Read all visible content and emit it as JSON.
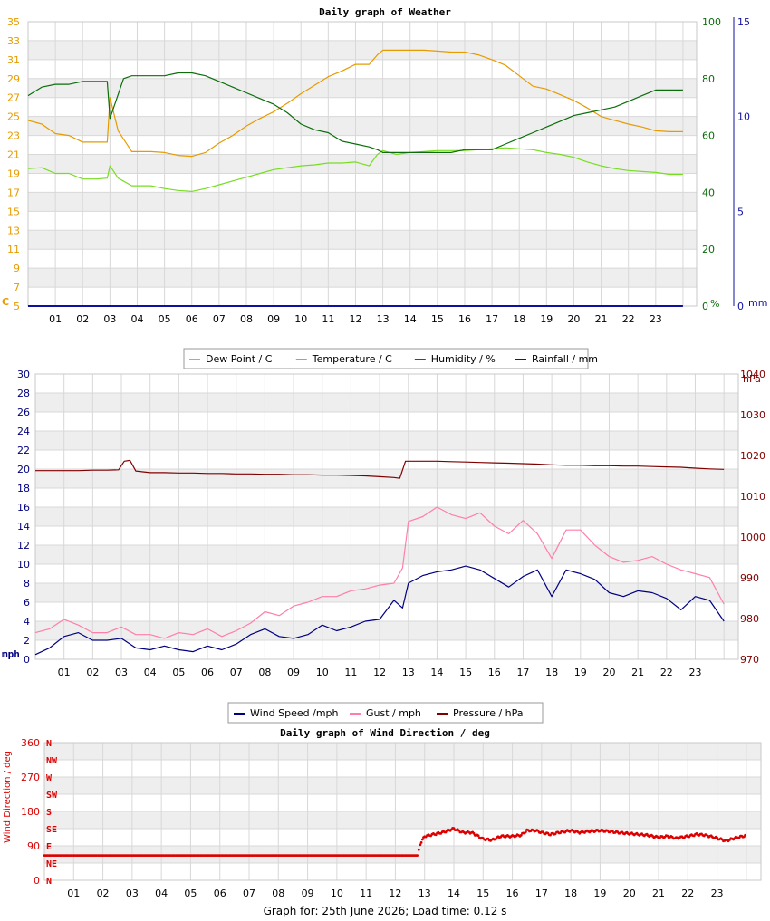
{
  "footer": "Graph for: 25th June 2026; Load time: 0.12 s",
  "hours": [
    "01",
    "02",
    "03",
    "04",
    "05",
    "06",
    "07",
    "08",
    "09",
    "10",
    "11",
    "12",
    "13",
    "14",
    "15",
    "16",
    "17",
    "18",
    "19",
    "20",
    "21",
    "22",
    "23"
  ],
  "chart_data": [
    {
      "type": "line",
      "title": "Daily graph of Weather",
      "x_range": [
        0,
        24.5
      ],
      "grid": true,
      "legend_position": "bottom",
      "axes": {
        "left": {
          "unit": "C",
          "range": [
            5,
            35
          ],
          "ticks": [
            5,
            7,
            9,
            11,
            13,
            15,
            17,
            19,
            21,
            23,
            25,
            27,
            29,
            31,
            33,
            35
          ],
          "color": "#e69b00"
        },
        "right1": {
          "unit": "%",
          "range": [
            0,
            100
          ],
          "ticks": [
            0,
            20,
            40,
            60,
            80,
            100
          ],
          "color": "#0b6e0b"
        },
        "right2": {
          "unit": "mm",
          "range": [
            0,
            15
          ],
          "ticks": [
            0,
            5,
            10,
            15
          ],
          "color": "#1010a0"
        }
      },
      "series": [
        {
          "name": "Dew Point / C",
          "color": "#77dd22",
          "axis": "left",
          "x": [
            0,
            0.5,
            1,
            1.5,
            2,
            2.5,
            2.9,
            3.0,
            3.3,
            3.8,
            4.5,
            5,
            5.5,
            6,
            6.5,
            7,
            7.5,
            8,
            8.5,
            9,
            9.5,
            10,
            10.5,
            11,
            11.5,
            12,
            12.5,
            12.8,
            13,
            13.5,
            14,
            14.5,
            15,
            15.5,
            16,
            16.5,
            17,
            17.5,
            18,
            18.5,
            19,
            19.5,
            20,
            20.5,
            21,
            21.5,
            22,
            22.5,
            23,
            23.5,
            24
          ],
          "y": [
            19.5,
            19.6,
            19,
            19,
            18.4,
            18.4,
            18.5,
            19.8,
            18.5,
            17.7,
            17.7,
            17.4,
            17.2,
            17.1,
            17.4,
            17.8,
            18.2,
            18.6,
            19,
            19.4,
            19.6,
            19.8,
            19.9,
            20.1,
            20.1,
            20.2,
            19.8,
            21,
            21.4,
            21,
            21.2,
            21.3,
            21.4,
            21.4,
            21.4,
            21.5,
            21.6,
            21.7,
            21.6,
            21.5,
            21.2,
            21,
            20.7,
            20.2,
            19.8,
            19.5,
            19.3,
            19.2,
            19.1,
            18.9,
            18.9
          ]
        },
        {
          "name": "Temperature / C",
          "color": "#e69b00",
          "axis": "left",
          "x": [
            0,
            0.5,
            1,
            1.5,
            2,
            2.5,
            2.9,
            3.0,
            3.3,
            3.8,
            4.5,
            5,
            5.5,
            6,
            6.5,
            7,
            7.5,
            8,
            8.5,
            9,
            9.5,
            10,
            10.5,
            11,
            11.5,
            12,
            12.5,
            12.8,
            13,
            13.5,
            14,
            14.5,
            15,
            15.5,
            16,
            16.5,
            17,
            17.5,
            18,
            18.5,
            19,
            19.5,
            20,
            20.5,
            21,
            21.5,
            22,
            22.5,
            23,
            23.5,
            24
          ],
          "y": [
            24.6,
            24.2,
            23.2,
            23,
            22.3,
            22.3,
            22.3,
            27,
            23.5,
            21.3,
            21.3,
            21.2,
            20.9,
            20.8,
            21.2,
            22.2,
            23,
            24,
            24.8,
            25.5,
            26.4,
            27.4,
            28.3,
            29.2,
            29.8,
            30.5,
            30.5,
            31.5,
            32,
            32,
            32,
            32,
            31.9,
            31.8,
            31.8,
            31.5,
            31,
            30.4,
            29.3,
            28.2,
            27.9,
            27.3,
            26.7,
            25.9,
            25,
            24.6,
            24.2,
            23.9,
            23.5,
            23.4,
            23.4
          ]
        },
        {
          "name": "Humidity / %",
          "color": "#0b6e0b",
          "axis": "right1",
          "x": [
            0,
            0.5,
            1,
            1.5,
            2,
            2.5,
            2.9,
            3.0,
            3.5,
            3.8,
            4.5,
            5,
            5.5,
            6,
            6.5,
            7,
            7.5,
            8,
            8.5,
            9,
            9.5,
            10,
            10.5,
            11,
            11.5,
            12,
            12.5,
            12.8,
            13,
            13.5,
            14,
            14.5,
            15,
            15.5,
            16,
            16.5,
            17,
            17.5,
            18,
            18.5,
            19,
            19.5,
            20,
            20.5,
            21,
            21.5,
            22,
            22.5,
            23,
            23.5,
            24
          ],
          "y": [
            74,
            77,
            78,
            78,
            79,
            79,
            79,
            66,
            80,
            81,
            81,
            81,
            82,
            82,
            81,
            79,
            77,
            75,
            73,
            71,
            68,
            64,
            62,
            61,
            58,
            57,
            56,
            55,
            54,
            54,
            54,
            54,
            54,
            54,
            55,
            55,
            55,
            57,
            59,
            61,
            63,
            65,
            67,
            68,
            69,
            70,
            72,
            74,
            76,
            76,
            76
          ]
        },
        {
          "name": "Rainfall / mm",
          "color": "#1010a0",
          "axis": "right2",
          "x": [
            0,
            24
          ],
          "y": [
            0,
            0
          ]
        }
      ]
    },
    {
      "type": "line",
      "title": "",
      "x_range": [
        0,
        24.5
      ],
      "grid": true,
      "legend_position": "bottom",
      "axes": {
        "left": {
          "unit": "mph",
          "range": [
            0,
            30
          ],
          "ticks": [
            0,
            2,
            4,
            6,
            8,
            10,
            12,
            14,
            16,
            18,
            20,
            22,
            24,
            26,
            28,
            30
          ],
          "color": "#000080"
        },
        "right": {
          "unit": "hPa",
          "range": [
            970,
            1040
          ],
          "ticks": [
            970,
            980,
            990,
            1000,
            1010,
            1020,
            1030,
            1040
          ],
          "color": "#800000"
        }
      },
      "series": [
        {
          "name": "Wind Speed /mph",
          "color": "#000080",
          "axis": "left",
          "x": [
            0,
            0.5,
            1,
            1.5,
            2,
            2.5,
            3,
            3.5,
            4,
            4.5,
            5,
            5.5,
            6,
            6.5,
            7,
            7.5,
            8,
            8.5,
            9,
            9.5,
            10,
            10.5,
            11,
            11.5,
            12,
            12.5,
            12.8,
            13,
            13.5,
            14,
            14.5,
            15,
            15.5,
            16,
            16.5,
            17,
            17.5,
            18,
            18.5,
            19,
            19.5,
            20,
            20.5,
            21,
            21.5,
            22,
            22.5,
            23,
            23.5,
            24
          ],
          "y": [
            0.5,
            1.2,
            2.4,
            2.8,
            2,
            2,
            2.2,
            1.2,
            1,
            1.4,
            1,
            0.8,
            1.4,
            1,
            1.6,
            2.6,
            3.2,
            2.4,
            2.2,
            2.6,
            3.6,
            3,
            3.4,
            4,
            4.2,
            6.2,
            5.4,
            8,
            8.8,
            9.2,
            9.4,
            9.8,
            9.4,
            8.5,
            7.6,
            8.7,
            9.4,
            6.6,
            9.4,
            9,
            8.4,
            7,
            6.6,
            7.2,
            7,
            6.4,
            5.2,
            6.6,
            6.2,
            4
          ]
        },
        {
          "name": "Gust / mph",
          "color": "#ff7fa8",
          "axis": "left",
          "x": [
            0,
            0.5,
            1,
            1.5,
            2,
            2.5,
            3,
            3.5,
            4,
            4.5,
            5,
            5.5,
            6,
            6.5,
            7,
            7.5,
            8,
            8.5,
            9,
            9.5,
            10,
            10.5,
            11,
            11.5,
            12,
            12.5,
            12.8,
            13,
            13.5,
            14,
            14.5,
            15,
            15.5,
            16,
            16.5,
            17,
            17.5,
            18,
            18.5,
            19,
            19.5,
            20,
            20.5,
            21,
            21.5,
            22,
            22.5,
            23,
            23.5,
            24
          ],
          "y": [
            2.8,
            3.2,
            4.2,
            3.6,
            2.8,
            2.8,
            3.4,
            2.6,
            2.6,
            2.2,
            2.8,
            2.6,
            3.2,
            2.4,
            3,
            3.8,
            5,
            4.6,
            5.6,
            6,
            6.6,
            6.6,
            7.2,
            7.4,
            7.8,
            8,
            9.6,
            14.5,
            15,
            16,
            15.2,
            14.8,
            15.4,
            14,
            13.2,
            14.6,
            13.2,
            10.6,
            13.6,
            13.6,
            12,
            10.8,
            10.2,
            10.4,
            10.8,
            10,
            9.4,
            9,
            8.6,
            5.8
          ]
        },
        {
          "name": "Pressure / hPa",
          "color": "#800000",
          "axis": "right",
          "x": [
            0,
            0.5,
            1,
            1.5,
            2,
            2.5,
            2.9,
            3.1,
            3.3,
            3.5,
            4,
            4.5,
            5,
            5.5,
            6,
            6.5,
            7,
            7.5,
            8,
            8.5,
            9,
            9.5,
            10,
            10.5,
            11,
            11.5,
            12,
            12.5,
            12.7,
            12.9,
            13.3,
            14,
            14.5,
            15,
            15.5,
            16,
            16.5,
            17,
            17.5,
            18,
            18.5,
            19,
            19.5,
            20,
            20.5,
            21,
            21.5,
            22,
            22.5,
            23,
            23.5,
            24
          ],
          "y": [
            1016.3,
            1016.3,
            1016.3,
            1016.3,
            1016.4,
            1016.4,
            1016.5,
            1018.6,
            1018.8,
            1016.2,
            1015.8,
            1015.8,
            1015.7,
            1015.7,
            1015.6,
            1015.6,
            1015.5,
            1015.5,
            1015.4,
            1015.4,
            1015.3,
            1015.3,
            1015.2,
            1015.2,
            1015.1,
            1015,
            1014.8,
            1014.6,
            1014.4,
            1018.6,
            1018.6,
            1018.6,
            1018.5,
            1018.4,
            1018.3,
            1018.2,
            1018.1,
            1018,
            1017.9,
            1017.7,
            1017.6,
            1017.6,
            1017.5,
            1017.5,
            1017.4,
            1017.4,
            1017.3,
            1017.2,
            1017.1,
            1016.9,
            1016.7,
            1016.6
          ]
        }
      ]
    },
    {
      "type": "scatter",
      "title": "Daily graph of Wind Direction / deg",
      "x_range": [
        0,
        24.5
      ],
      "grid": true,
      "ylabel": "Wind Direction / deg",
      "ylim": [
        0,
        360
      ],
      "yticks": [
        0,
        90,
        180,
        270,
        360
      ],
      "compass": [
        "N",
        "NE",
        "E",
        "SE",
        "S",
        "SW",
        "W",
        "NW",
        "N"
      ],
      "series": [
        {
          "name": "Wind Direction / deg",
          "color": "#dd0000",
          "x": [
            0,
            0.5,
            1,
            1.5,
            2,
            2.5,
            3,
            3.5,
            4,
            4.5,
            5,
            5.5,
            6,
            6.5,
            7,
            7.5,
            8,
            8.5,
            9,
            9.5,
            10,
            10.5,
            11,
            11.5,
            12,
            12.5,
            12.75,
            12.85,
            13,
            13.3,
            13.6,
            14,
            14.3,
            14.6,
            15,
            15.3,
            15.6,
            16,
            16.3,
            16.5,
            16.8,
            17,
            17.3,
            17.6,
            18,
            18.3,
            18.6,
            19,
            19.3,
            19.6,
            20,
            20.3,
            20.6,
            21,
            21.3,
            21.6,
            22,
            22.3,
            22.6,
            23,
            23.3,
            23.6,
            24
          ],
          "y": [
            65,
            65,
            65,
            65,
            65,
            65,
            65,
            65,
            65,
            65,
            65,
            65,
            65,
            65,
            65,
            65,
            65,
            65,
            65,
            65,
            65,
            65,
            65,
            65,
            65,
            65,
            65,
            95,
            115,
            120,
            125,
            135,
            125,
            125,
            108,
            105,
            115,
            115,
            118,
            130,
            130,
            125,
            120,
            125,
            130,
            125,
            128,
            130,
            128,
            125,
            122,
            120,
            118,
            112,
            115,
            110,
            115,
            120,
            118,
            110,
            103,
            110,
            117
          ]
        }
      ]
    }
  ]
}
